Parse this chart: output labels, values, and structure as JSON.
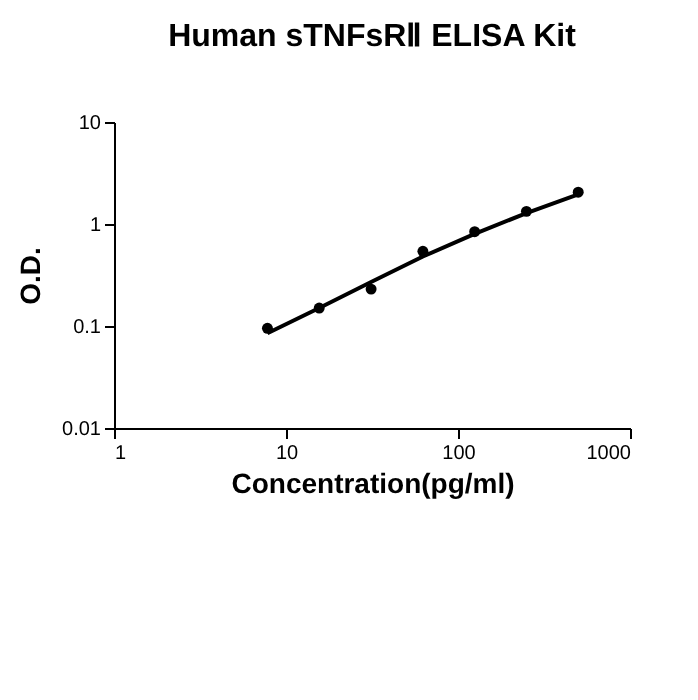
{
  "chart_data": {
    "type": "scatter",
    "title": "Human sTNFsRⅡ ELISA Kit",
    "xlabel": "Concentration(pg/ml)",
    "ylabel": "O.D.",
    "series": [
      {
        "type": "line",
        "color": "#000000",
        "marker": "none",
        "line_style": "solid",
        "x": [
          7.8,
          15.6,
          31.25,
          62.5,
          125,
          250,
          500
        ],
        "values": [
          0.085,
          0.15,
          0.27,
          0.48,
          0.8,
          1.28,
          1.95
        ]
      },
      {
        "color": "#000000",
        "marker": "circle",
        "x": [
          7.8,
          15.6,
          31.25,
          62.5,
          125,
          250,
          500
        ],
        "values": [
          0.095,
          0.15,
          0.23,
          0.54,
          0.84,
          1.33,
          2.05
        ]
      }
    ],
    "log": "xy",
    "xlim": [
      1,
      1000
    ],
    "ylim": [
      0.01,
      10
    ],
    "xticks": [
      1,
      10,
      100,
      1000
    ],
    "yticks": [
      0.01,
      0.1,
      1,
      10
    ],
    "grid": false
  }
}
